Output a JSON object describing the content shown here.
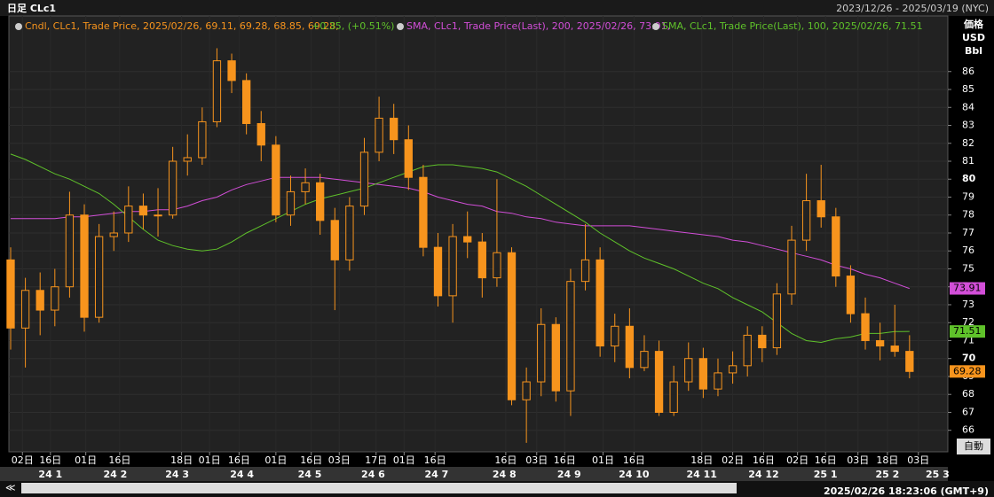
{
  "chart_data": {
    "type": "candlestick",
    "title": "日足 CLc1",
    "range_text": "2023/12/26 - 2025/03/19 (NYC)",
    "legend": [
      "Cndl, CLc1, Trade Price, 2025/02/26, 69.11, 69.28, 68.85, 69.28,",
      "+0.35, (+0.51%)",
      "SMA, CLc1, Trade Price(Last), 200, 2025/02/26, 73.91,",
      "SMA, CLc1, Trade Price(Last), 100, 2025/02/26, 71.51"
    ],
    "axis_label": [
      "価格",
      "USD",
      "Bbl"
    ],
    "auto_button": "自動",
    "status": "2025/02/26 18:23:06 (GMT+9)",
    "xlim": [
      -0.12,
      63.6
    ],
    "ylim": [
      64.8,
      89.1
    ],
    "yticks": [
      66,
      67,
      68,
      69,
      70,
      71,
      72,
      73,
      74,
      75,
      76,
      77,
      78,
      79,
      80,
      81,
      82,
      83,
      84,
      85,
      86
    ],
    "dayticks": [
      {
        "value": 0.8,
        "label": "02日"
      },
      {
        "value": 2.7,
        "label": "16日"
      },
      {
        "value": 5.1,
        "label": "01日"
      },
      {
        "value": 7.4,
        "label": "16日"
      },
      {
        "value": 11.6,
        "label": "18日"
      },
      {
        "value": 13.5,
        "label": "01日"
      },
      {
        "value": 15.5,
        "label": "16日"
      },
      {
        "value": 18.0,
        "label": "01日"
      },
      {
        "value": 20.4,
        "label": "16日"
      },
      {
        "value": 22.3,
        "label": "03日"
      },
      {
        "value": 24.8,
        "label": "17日"
      },
      {
        "value": 26.7,
        "label": "01日"
      },
      {
        "value": 28.8,
        "label": "16日"
      },
      {
        "value": 33.6,
        "label": "16日"
      },
      {
        "value": 35.7,
        "label": "03日"
      },
      {
        "value": 37.6,
        "label": "16日"
      },
      {
        "value": 40.2,
        "label": "01日"
      },
      {
        "value": 42.3,
        "label": "16日"
      },
      {
        "value": 46.9,
        "label": "18日"
      },
      {
        "value": 49.0,
        "label": "02日"
      },
      {
        "value": 51.1,
        "label": "16日"
      },
      {
        "value": 53.4,
        "label": "02日"
      },
      {
        "value": 55.3,
        "label": "16日"
      },
      {
        "value": 57.5,
        "label": "03日"
      },
      {
        "value": 59.5,
        "label": "18日"
      },
      {
        "value": 61.6,
        "label": "03日"
      }
    ],
    "monthticks": [
      {
        "value": 2.7,
        "label": "24 1"
      },
      {
        "value": 7.1,
        "label": "24 2"
      },
      {
        "value": 11.3,
        "label": "24 3"
      },
      {
        "value": 15.7,
        "label": "24 4"
      },
      {
        "value": 20.3,
        "label": "24 5"
      },
      {
        "value": 24.6,
        "label": "24 6"
      },
      {
        "value": 28.9,
        "label": "24 7"
      },
      {
        "value": 33.5,
        "label": "24 8"
      },
      {
        "value": 37.9,
        "label": "24 9"
      },
      {
        "value": 42.3,
        "label": "24 10"
      },
      {
        "value": 46.9,
        "label": "24 11"
      },
      {
        "value": 51.1,
        "label": "24 12"
      },
      {
        "value": 55.3,
        "label": "25 1"
      },
      {
        "value": 59.5,
        "label": "25 2"
      },
      {
        "value": 62.9,
        "label": "25 3"
      }
    ],
    "candles": {
      "color": "#f7941d",
      "open": [
        75.5,
        71.7,
        73.8,
        72.7,
        74.0,
        78.0,
        72.3,
        76.8,
        77.0,
        78.5,
        78.0,
        78.0,
        81.0,
        81.2,
        83.2,
        86.6,
        85.5,
        83.1,
        81.9,
        78.0,
        79.3,
        79.8,
        77.7,
        75.5,
        78.5,
        81.5,
        83.4,
        82.2,
        80.1,
        76.2,
        73.5,
        76.8,
        76.5,
        74.5,
        75.9,
        67.7,
        68.7,
        71.9,
        68.2,
        74.3,
        75.5,
        70.7,
        71.8,
        69.5,
        70.4,
        67.0,
        68.7,
        70.0,
        68.3,
        69.2,
        69.6,
        71.3,
        70.6,
        73.6,
        76.6,
        78.8,
        77.9,
        74.6,
        72.5,
        71.0,
        70.7,
        70.4
      ],
      "high": [
        76.2,
        74.5,
        74.8,
        75.0,
        79.3,
        78.6,
        77.5,
        78.2,
        79.6,
        79.2,
        79.5,
        81.8,
        82.5,
        84.0,
        87.3,
        87.0,
        85.9,
        83.8,
        82.4,
        80.2,
        80.6,
        80.3,
        78.4,
        79.0,
        82.3,
        84.6,
        84.2,
        83.0,
        80.8,
        77.0,
        77.5,
        78.2,
        77.0,
        80.0,
        76.2,
        69.5,
        72.8,
        72.3,
        75.0,
        77.5,
        76.2,
        72.5,
        72.8,
        71.3,
        71.0,
        69.6,
        70.9,
        70.6,
        70.0,
        70.4,
        71.8,
        71.8,
        74.2,
        77.4,
        80.3,
        80.8,
        78.4,
        75.2,
        73.4,
        72.0,
        73.0,
        71.3
      ],
      "low": [
        70.5,
        69.5,
        71.3,
        71.8,
        73.4,
        71.5,
        72.0,
        76.0,
        76.5,
        77.2,
        76.8,
        77.8,
        80.2,
        80.8,
        82.9,
        84.8,
        82.5,
        81.0,
        77.6,
        77.4,
        78.6,
        76.9,
        72.7,
        74.9,
        78.0,
        81.0,
        81.4,
        79.4,
        75.7,
        72.9,
        72.0,
        75.6,
        73.4,
        74.0,
        67.4,
        65.3,
        67.9,
        67.6,
        66.8,
        73.8,
        70.1,
        69.8,
        68.9,
        69.3,
        66.8,
        66.8,
        68.2,
        67.8,
        67.9,
        68.6,
        69.0,
        69.8,
        70.2,
        73.0,
        76.0,
        77.3,
        74.0,
        72.0,
        70.5,
        69.9,
        70.1,
        68.9
      ],
      "close": [
        71.7,
        73.8,
        72.7,
        74.0,
        78.0,
        72.3,
        76.8,
        77.0,
        78.5,
        78.0,
        78.0,
        81.0,
        81.2,
        83.2,
        86.6,
        85.5,
        83.1,
        81.9,
        78.0,
        79.3,
        79.8,
        77.7,
        75.5,
        78.5,
        81.5,
        83.4,
        82.2,
        80.1,
        76.2,
        73.5,
        76.8,
        76.5,
        74.5,
        75.9,
        67.7,
        68.7,
        71.9,
        68.2,
        74.3,
        75.5,
        70.7,
        71.8,
        69.5,
        70.4,
        67.0,
        68.7,
        70.0,
        68.3,
        69.2,
        69.6,
        71.3,
        70.6,
        73.6,
        76.6,
        78.8,
        77.9,
        74.6,
        72.5,
        71.0,
        70.7,
        70.4,
        69.28
      ]
    },
    "sma200": {
      "color": "#d24ed8",
      "values": [
        77.8,
        77.8,
        77.8,
        77.8,
        77.9,
        77.9,
        78.0,
        78.1,
        78.2,
        78.2,
        78.3,
        78.3,
        78.5,
        78.8,
        79.0,
        79.4,
        79.7,
        79.9,
        80.1,
        80.1,
        80.1,
        80.1,
        80.0,
        79.9,
        79.8,
        79.7,
        79.6,
        79.5,
        79.3,
        79.0,
        78.8,
        78.6,
        78.5,
        78.2,
        78.1,
        77.9,
        77.8,
        77.6,
        77.5,
        77.4,
        77.4,
        77.4,
        77.4,
        77.3,
        77.2,
        77.1,
        77.0,
        76.9,
        76.8,
        76.6,
        76.5,
        76.3,
        76.1,
        75.9,
        75.7,
        75.5,
        75.2,
        75.0,
        74.7,
        74.5,
        74.2,
        73.91
      ]
    },
    "sma100": {
      "color": "#5fc22a",
      "values": [
        81.4,
        81.1,
        80.7,
        80.3,
        80.0,
        79.6,
        79.2,
        78.6,
        77.9,
        77.2,
        76.6,
        76.3,
        76.1,
        76.0,
        76.1,
        76.5,
        77.0,
        77.4,
        77.8,
        78.2,
        78.6,
        78.9,
        79.1,
        79.3,
        79.5,
        79.8,
        80.1,
        80.4,
        80.7,
        80.8,
        80.8,
        80.7,
        80.6,
        80.4,
        80.0,
        79.6,
        79.1,
        78.6,
        78.1,
        77.6,
        77.0,
        76.5,
        76.0,
        75.6,
        75.3,
        75.0,
        74.6,
        74.2,
        73.9,
        73.4,
        73.0,
        72.6,
        72.0,
        71.4,
        71.0,
        70.9,
        71.1,
        71.2,
        71.4,
        71.4,
        71.5,
        71.51
      ]
    }
  }
}
